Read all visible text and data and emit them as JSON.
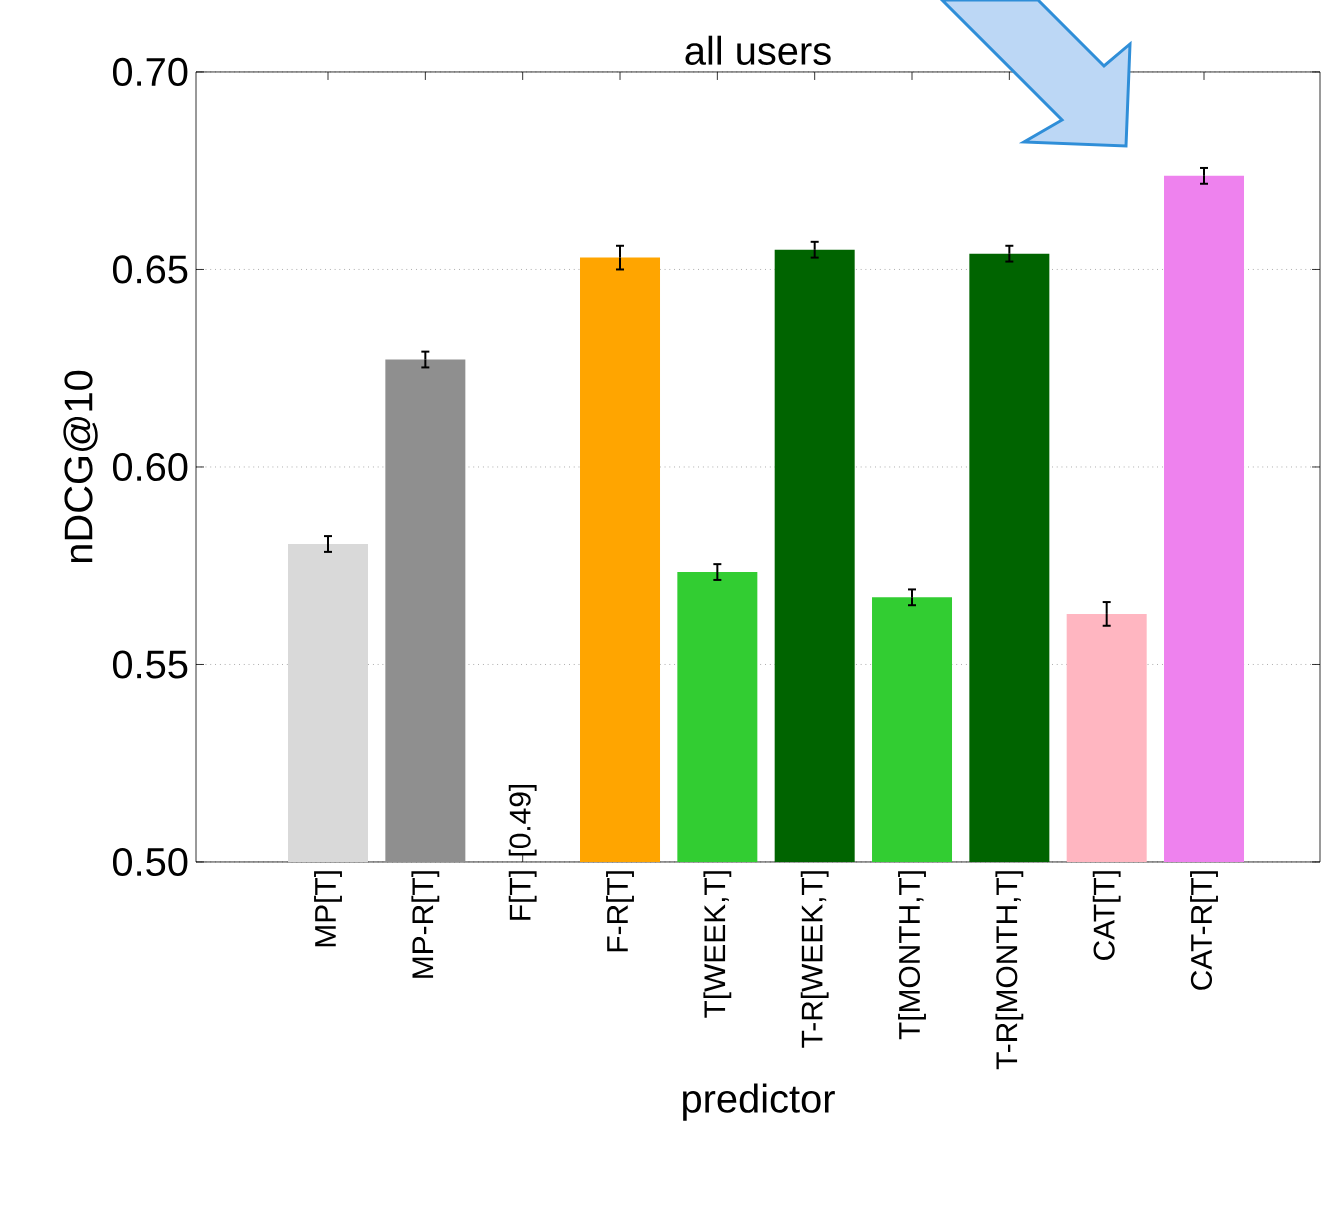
{
  "chart_data": {
    "type": "bar",
    "title": "all users",
    "xlabel": "predictor",
    "ylabel": "nDCG@10",
    "categories": [
      "MP[T]",
      "MP-R[T]",
      "F[T]",
      "F-R[T]",
      "T[WEEK,T]",
      "T-R[WEEK,T]",
      "T[MONTH,T]",
      "T-R[MONTH,T]",
      "CAT[T]",
      "CAT-R[T]"
    ],
    "values": [
      0.5805,
      0.6272,
      null,
      0.653,
      0.5734,
      0.655,
      0.567,
      0.654,
      0.5628,
      0.6737
    ],
    "errors": [
      0.002,
      0.002,
      null,
      0.003,
      0.002,
      0.002,
      0.002,
      0.002,
      0.003,
      0.002
    ],
    "colors": [
      "#d9d9d9",
      "#8f8f8f",
      "#ffa500",
      "#ffa500",
      "#32cd32",
      "#006400",
      "#32cd32",
      "#006400",
      "#ffb6c1",
      "#ee82ee"
    ],
    "ylim": [
      0.5,
      0.7
    ],
    "yticks": [
      {
        "value": 0.5,
        "label": "0.50"
      },
      {
        "value": 0.55,
        "label": "0.55"
      },
      {
        "value": 0.6,
        "label": "0.60"
      },
      {
        "value": 0.65,
        "label": "0.65"
      },
      {
        "value": 0.7,
        "label": "0.70"
      }
    ],
    "grid": "y",
    "annotations": [
      "[0.49]"
    ]
  }
}
